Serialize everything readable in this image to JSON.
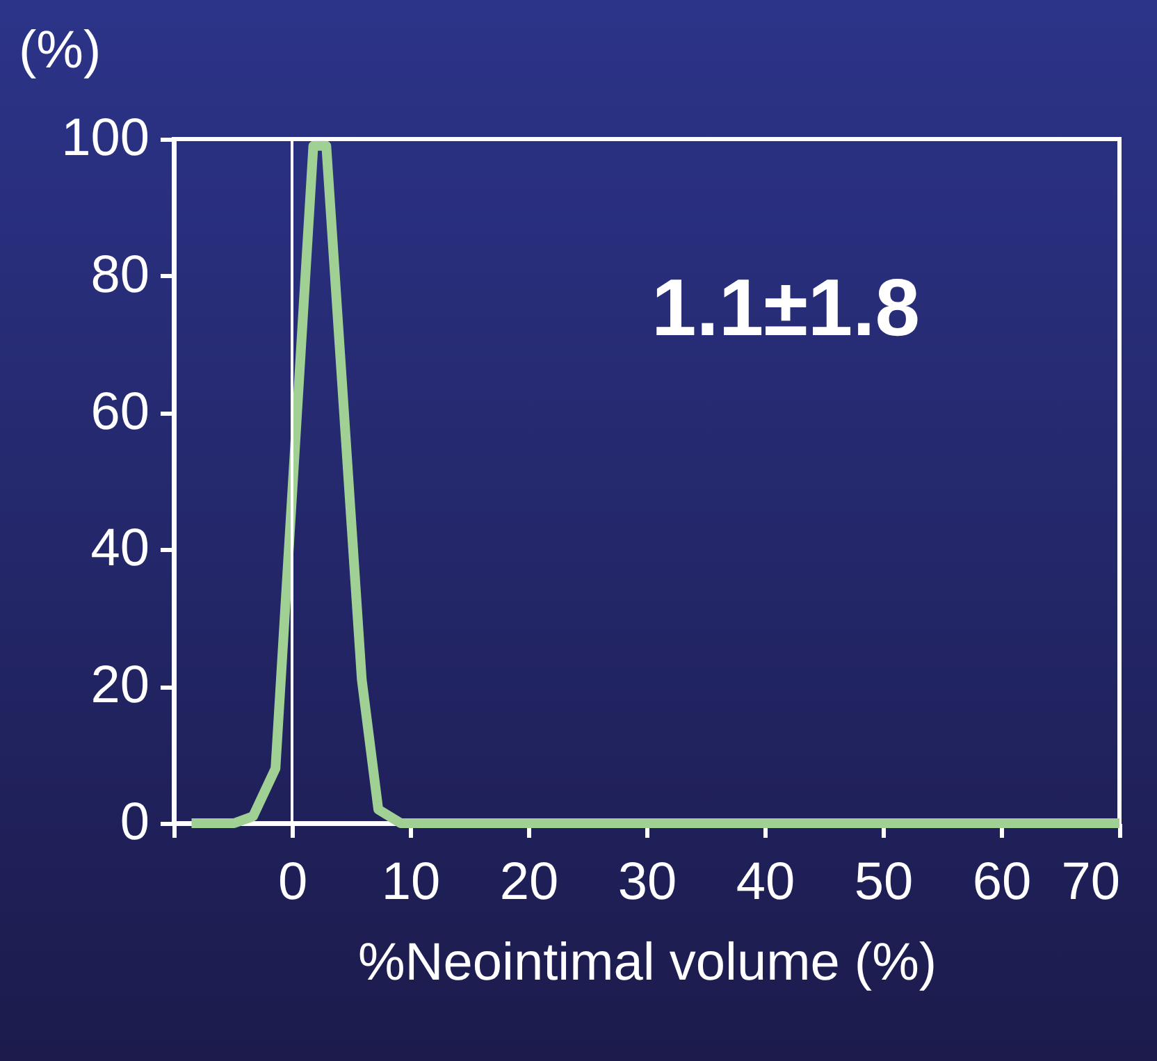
{
  "chart_data": {
    "type": "line",
    "xlabel": "%Neointimal volume (%)",
    "ylabel": "(%)",
    "x": [
      -8.5,
      -4.9,
      -3.3,
      -1.4,
      1.8,
      2.9,
      5.9,
      7.3,
      9.2,
      70
    ],
    "series": [
      {
        "color": "#a0d094",
        "values": [
          0,
          0,
          1,
          8,
          99,
          99,
          21,
          2,
          0,
          0
        ]
      }
    ],
    "xlim": [
      -10,
      70
    ],
    "xticks": [
      {
        "value": -10,
        "label": null
      },
      0,
      10,
      20,
      30,
      40,
      50,
      60,
      70
    ],
    "ylim": [
      0,
      100
    ],
    "yticks": [
      0,
      20,
      40,
      60,
      80,
      100
    ],
    "ref_lines": [
      {
        "axis": "x",
        "value": 0,
        "color": "#ffffff"
      }
    ],
    "annotations": [
      "1.1±1.8"
    ],
    "grid": false,
    "marker": "none",
    "line_style": "solid"
  }
}
